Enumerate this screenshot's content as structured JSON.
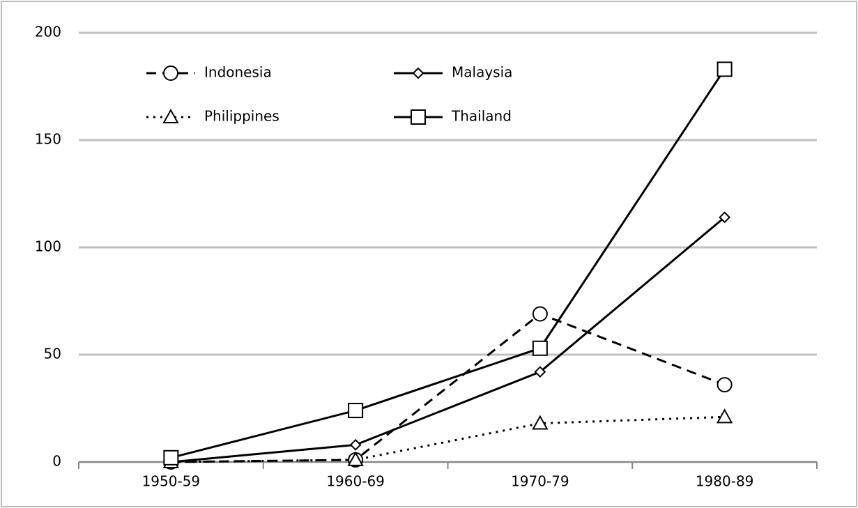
{
  "chart_data": {
    "type": "line",
    "categories": [
      "1950-59",
      "1960-69",
      "1970-79",
      "1980-89"
    ],
    "series": [
      {
        "name": "Indonesia",
        "color": "#000000",
        "line_style": "dashed",
        "marker": "circle",
        "values": [
          0,
          1,
          69,
          36
        ]
      },
      {
        "name": "Malaysia",
        "color": "#000000",
        "line_style": "solid",
        "marker": "diamond",
        "values": [
          0,
          8,
          42,
          114
        ]
      },
      {
        "name": "Philippines",
        "color": "#000000",
        "line_style": "dotted",
        "marker": "triangle",
        "values": [
          0,
          1,
          18,
          21
        ]
      },
      {
        "name": "Thailand",
        "color": "#000000",
        "line_style": "solid",
        "marker": "square",
        "values": [
          2,
          24,
          53,
          183
        ]
      }
    ],
    "ylim": [
      0,
      200
    ],
    "yticks": [
      0,
      50,
      100,
      150,
      200
    ],
    "grid": true,
    "legend": "upper-left"
  }
}
